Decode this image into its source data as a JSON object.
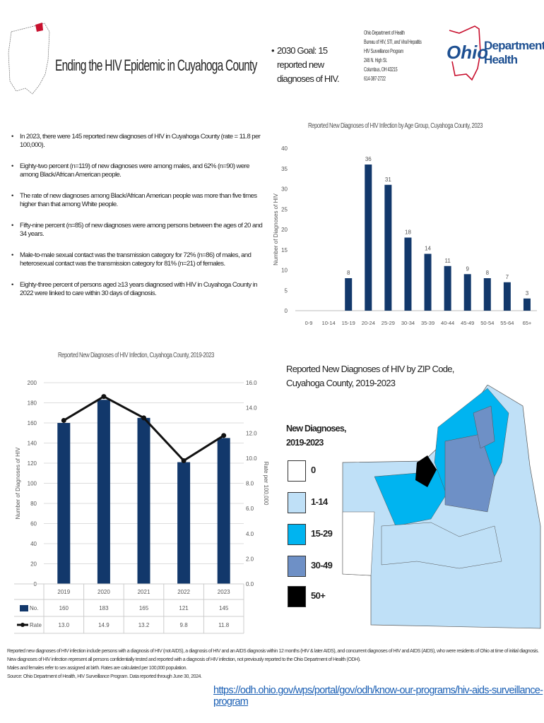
{
  "header": {
    "title": "Ending the HIV Epidemic in Cuyahoga County",
    "goal": "2030 Goal: 15 reported new diagnoses of HIV.",
    "address": [
      "Ohio Department of Health",
      "Bureau of HIV, STI, and Viral Hepatitis",
      "HIV Surveillance Program",
      "246 N. High St.",
      "Columbus, OH 43215",
      "614-387-2722"
    ],
    "logo_text": "Ohio Department of Health",
    "logo_line1": "Department of",
    "logo_line2": "Health"
  },
  "bullets": [
    "In 2023, there were 145 reported new diagnoses of HIV in Cuyahoga County (rate = 11.8 per 100,000).",
    "Eighty-two percent (n=119) of new diagnoses were among males, and 62% (n=90) were among Black/African American people.",
    "The rate of new diagnoses among Black/African American people was more than five times higher than that among White people.",
    "Fifty-nine percent (n=85) of new diagnoses were among persons between the ages of 20 and 34 years.",
    "Male-to-male sexual contact was the transmission category for 72% (n=86) of males, and heterosexual contact was the transmission category for 81% (n=21) of females.",
    "Eighty-three percent of persons aged ≥13 years diagnosed with HIV in Cuyahoga County in 2022 were linked to care within 30 days of diagnosis."
  ],
  "chart_data": [
    {
      "type": "bar",
      "title": "Reported New Diagnoses of HIV Infection by Age Group, Cuyahoga County, 2023",
      "ylabel": "Number of Diagnoses of HIV",
      "ylim": [
        0,
        40
      ],
      "yticks": [
        "0",
        "5",
        "10",
        "15",
        "20",
        "25",
        "30",
        "35",
        "40"
      ],
      "categories": [
        "0-9",
        "10-14",
        "15-19",
        "20-24",
        "25-29",
        "30-34",
        "35-39",
        "40-44",
        "45-49",
        "50-54",
        "55-64",
        "65+"
      ],
      "values": [
        null,
        null,
        8,
        36,
        31,
        18,
        14,
        11,
        9,
        8,
        7,
        3
      ],
      "color": "#12386b"
    },
    {
      "type": "bar+line",
      "title": "Reported New Diagnoses of HIV Infection, Cuyahoga County, 2019-2023",
      "ylabel": "Number of Diagnoses of HIV",
      "y2label": "Rate per 100,000",
      "ylim": [
        0,
        200
      ],
      "y2lim": [
        0,
        16
      ],
      "yticks": [
        "0",
        "20",
        "40",
        "60",
        "80",
        "100",
        "120",
        "140",
        "160",
        "180",
        "200"
      ],
      "y2ticks": [
        "0.0",
        "2.0",
        "4.0",
        "6.0",
        "8.0",
        "10.0",
        "12.0",
        "14.0",
        "16.0"
      ],
      "categories": [
        "2019",
        "2020",
        "2021",
        "2022",
        "2023"
      ],
      "series": [
        {
          "name": "No.",
          "type": "bar",
          "values": [
            160,
            183,
            165,
            121,
            145
          ],
          "labels": [
            "160",
            "183",
            "165",
            "121",
            "145"
          ],
          "color": "#12386b"
        },
        {
          "name": "Rate",
          "type": "line",
          "values": [
            13.0,
            14.9,
            13.2,
            9.8,
            11.8
          ],
          "labels": [
            "13.0",
            "14.9",
            "13.2",
            "9.8",
            "11.8"
          ],
          "color": "#111111"
        }
      ],
      "grid": true
    }
  ],
  "map": {
    "title_line1": "Reported New Diagnoses of HIV by ZIP Code,",
    "title_line2": "Cuyahoga County, 2019-2023",
    "legend_title_line1": "New Diagnoses,",
    "legend_title_line2": "2019-2023",
    "legend": [
      {
        "label": "0",
        "color": "#ffffff"
      },
      {
        "label": "1-14",
        "color": "#bfe0f7"
      },
      {
        "label": "15-29",
        "color": "#00b4f0"
      },
      {
        "label": "30-49",
        "color": "#6e90c6"
      },
      {
        "label": "50+",
        "color": "#000000"
      }
    ]
  },
  "footer": {
    "lines": [
      "Reported new diagnoses of HIV infection include persons with a diagnosis of HIV (not AIDS), a diagnosis of HIV and an AIDS diagnosis within 12 months (HIV & later AIDS), and concurrent diagnoses of HIV and AIDS (AIDS), who were residents of Ohio at time of initial diagnosis. New diagnoses of HIV infection represent all persons confidentially tested and reported with a diagnosis of HIV infection, not previously reported to the Ohio Department of Health (ODH).",
      "Males and females refer to sex assigned at birth. Rates are calculated per 100,000 population.",
      "Source: Ohio Department of Health, HIV Surveillance Program. Data reported through June 30, 2024."
    ],
    "link": "https://odh.ohio.gov/wps/portal/gov/odh/know-our-programs/hiv-aids-surveillance-program"
  }
}
